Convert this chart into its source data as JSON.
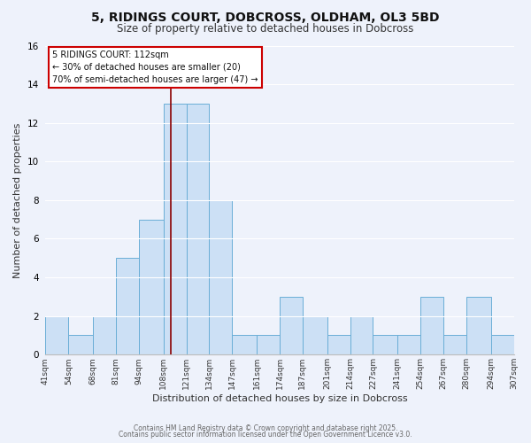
{
  "title": "5, RIDINGS COURT, DOBCROSS, OLDHAM, OL3 5BD",
  "subtitle": "Size of property relative to detached houses in Dobcross",
  "xlabel": "Distribution of detached houses by size in Dobcross",
  "ylabel": "Number of detached properties",
  "bin_edges": [
    41,
    54,
    68,
    81,
    94,
    108,
    121,
    134,
    147,
    161,
    174,
    187,
    201,
    214,
    227,
    241,
    254,
    267,
    280,
    294,
    307
  ],
  "counts": [
    2,
    1,
    2,
    5,
    7,
    13,
    13,
    8,
    1,
    1,
    3,
    2,
    1,
    2,
    1,
    1,
    3,
    1,
    3,
    1
  ],
  "bar_color": "#cce0f5",
  "bar_edge_color": "#6aaed6",
  "property_size": 112,
  "property_line_color": "#8b0000",
  "annotation_line1": "5 RIDINGS COURT: 112sqm",
  "annotation_line2": "← 30% of detached houses are smaller (20)",
  "annotation_line3": "70% of semi-detached houses are larger (47) →",
  "annotation_box_facecolor": "#ffffff",
  "annotation_box_edgecolor": "#cc0000",
  "ylim": [
    0,
    16
  ],
  "yticks": [
    0,
    2,
    4,
    6,
    8,
    10,
    12,
    14,
    16
  ],
  "background_color": "#eef2fb",
  "grid_color": "#ffffff",
  "footer_line1": "Contains HM Land Registry data © Crown copyright and database right 2025.",
  "footer_line2": "Contains public sector information licensed under the Open Government Licence v3.0."
}
